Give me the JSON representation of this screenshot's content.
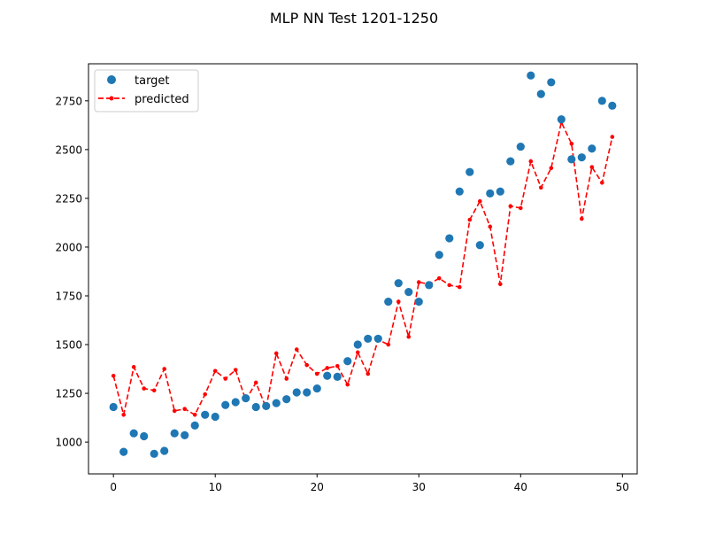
{
  "chart_data": {
    "type": "scatter",
    "title": "MLP NN Test 1201-1250",
    "xlabel": "",
    "ylabel": "",
    "xlim": [
      -2.45,
      51.45
    ],
    "ylim": [
      837,
      2940
    ],
    "xticks": [
      0,
      10,
      20,
      30,
      40,
      50
    ],
    "yticks": [
      1000,
      1250,
      1500,
      1750,
      2000,
      2250,
      2500,
      2750
    ],
    "grid": false,
    "legend_position": "upper left",
    "x": [
      0,
      1,
      2,
      3,
      4,
      5,
      6,
      7,
      8,
      9,
      10,
      11,
      12,
      13,
      14,
      15,
      16,
      17,
      18,
      19,
      20,
      21,
      22,
      23,
      24,
      25,
      26,
      27,
      28,
      29,
      30,
      31,
      32,
      33,
      34,
      35,
      36,
      37,
      38,
      39,
      40,
      41,
      42,
      43,
      44,
      45,
      46,
      47,
      48,
      49
    ],
    "series": [
      {
        "name": "target",
        "style": "markers",
        "color": "#1f77b4",
        "values": [
          1180,
          950,
          1045,
          1030,
          940,
          955,
          1045,
          1035,
          1085,
          1140,
          1130,
          1190,
          1205,
          1225,
          1180,
          1185,
          1200,
          1220,
          1255,
          1255,
          1275,
          1340,
          1335,
          1415,
          1500,
          1530,
          1530,
          1720,
          1815,
          1770,
          1720,
          1805,
          1960,
          2045,
          2285,
          2385,
          2010,
          2275,
          2285,
          2440,
          2515,
          2880,
          2785,
          2845,
          2655,
          2450,
          2460,
          2505,
          2750,
          2725
        ]
      },
      {
        "name": "predicted",
        "style": "dashed-line-with-dots",
        "color": "#ff0000",
        "values": [
          1340,
          1140,
          1385,
          1275,
          1265,
          1375,
          1160,
          1170,
          1140,
          1245,
          1365,
          1325,
          1370,
          1215,
          1305,
          1175,
          1455,
          1325,
          1475,
          1395,
          1350,
          1380,
          1390,
          1295,
          1460,
          1350,
          1525,
          1500,
          1720,
          1540,
          1820,
          1810,
          1840,
          1805,
          1795,
          2140,
          2235,
          2105,
          1810,
          2210,
          2200,
          2440,
          2305,
          2405,
          2640,
          2530,
          2145,
          2410,
          2330,
          2565
        ]
      }
    ]
  }
}
